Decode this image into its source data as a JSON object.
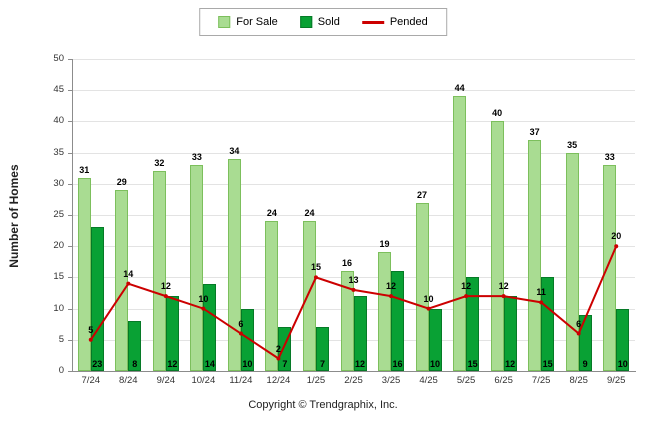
{
  "chart_data": {
    "type": "bar",
    "categories": [
      "7/24",
      "8/24",
      "9/24",
      "10/24",
      "11/24",
      "12/24",
      "1/25",
      "2/25",
      "3/25",
      "4/25",
      "5/25",
      "6/25",
      "7/25",
      "8/25",
      "9/25"
    ],
    "series": [
      {
        "name": "For Sale",
        "type": "bar",
        "color": "#A9DC92",
        "border": "#7CBF5C",
        "values": [
          31,
          29,
          32,
          33,
          34,
          24,
          24,
          16,
          19,
          27,
          44,
          40,
          37,
          35,
          33
        ]
      },
      {
        "name": "Sold",
        "type": "bar",
        "color": "#09A134",
        "border": "#067A27",
        "values": [
          23,
          8,
          12,
          14,
          10,
          7,
          7,
          12,
          16,
          10,
          15,
          12,
          15,
          9,
          10
        ]
      },
      {
        "name": "Pended",
        "type": "line",
        "color": "#CC0000",
        "values": [
          5,
          14,
          12,
          10,
          6,
          2,
          15,
          13,
          12,
          10,
          12,
          12,
          11,
          6,
          20
        ]
      }
    ],
    "title": "",
    "xlabel": "",
    "ylabel": "Number of Homes",
    "ylim": [
      0,
      50
    ],
    "ytick_step": 5,
    "grid": true,
    "legend_position": "top"
  },
  "footer": {
    "copyright": "Copyright © Trendgraphix, Inc."
  }
}
